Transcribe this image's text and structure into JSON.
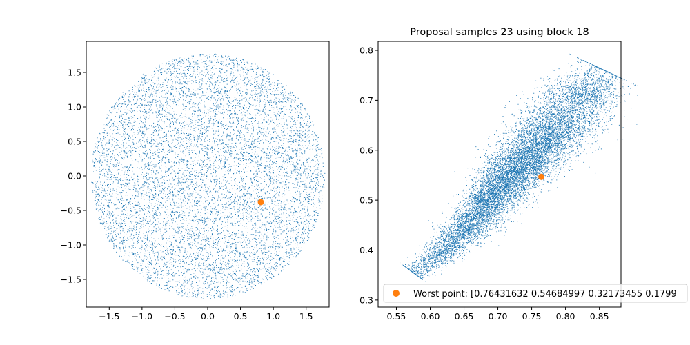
{
  "chart_data": [
    {
      "type": "scatter",
      "title": "",
      "xlabel": "",
      "ylabel": "",
      "xlim": [
        -1.85,
        1.85
      ],
      "ylim": [
        -1.9,
        1.95
      ],
      "xticks": [
        -1.5,
        -1.0,
        -0.5,
        0.0,
        0.5,
        1.0,
        1.5
      ],
      "yticks": [
        -1.5,
        -1.0,
        -0.5,
        0.0,
        0.5,
        1.0,
        1.5
      ],
      "xtick_labels": [
        "−1.5",
        "−1.0",
        "−0.5",
        "0.0",
        "0.5",
        "1.0",
        "1.5"
      ],
      "ytick_labels": [
        "−1.5",
        "−1.0",
        "−0.5",
        "0.0",
        "0.5",
        "1.0",
        "1.5"
      ],
      "grid": false,
      "series": [
        {
          "kind": "cloud",
          "color": "#1f77b4",
          "distribution": "uniform-disk",
          "center": [
            0.0,
            0.0
          ],
          "radius": 1.78,
          "count": 9000
        },
        {
          "kind": "marker",
          "color": "#ff7f0e",
          "x": [
            0.81
          ],
          "y": [
            -0.38
          ]
        }
      ]
    },
    {
      "type": "scatter",
      "title": "Proposal samples 23 using block 18",
      "xlabel": "",
      "ylabel": "",
      "xlim": [
        0.523,
        0.882
      ],
      "ylim": [
        0.286,
        0.818
      ],
      "xticks": [
        0.55,
        0.6,
        0.65,
        0.7,
        0.75,
        0.8,
        0.85
      ],
      "yticks": [
        0.3,
        0.4,
        0.5,
        0.6,
        0.7,
        0.8
      ],
      "xtick_labels": [
        "0.55",
        "0.60",
        "0.65",
        "0.70",
        "0.75",
        "0.80",
        "0.85"
      ],
      "ytick_labels": [
        "0.3",
        "0.4",
        "0.5",
        "0.6",
        "0.7",
        "0.8"
      ],
      "grid": false,
      "legend_position": "lower-right",
      "series": [
        {
          "kind": "cloud",
          "color": "#1f77b4",
          "distribution": "tilted-ellipse",
          "path": [
            [
              0.575,
              0.355
            ],
            [
              0.64,
              0.42
            ],
            [
              0.7,
              0.52
            ],
            [
              0.76,
              0.61
            ],
            [
              0.82,
              0.7
            ],
            [
              0.858,
              0.76
            ]
          ],
          "half_width": [
            0.01,
            0.016,
            0.022,
            0.028,
            0.03,
            0.022
          ],
          "count": 12000
        },
        {
          "kind": "marker",
          "name": "Worst point: [0.76431632 0.54684997 0.32173455 0.1799",
          "color": "#ff7f0e",
          "x": [
            0.7643
          ],
          "y": [
            0.5468
          ]
        }
      ]
    }
  ]
}
